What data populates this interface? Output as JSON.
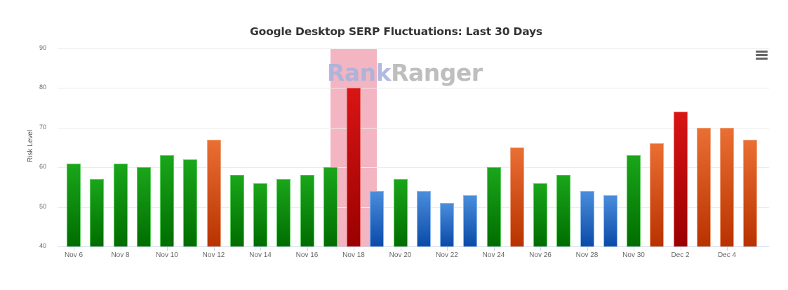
{
  "chart_data": {
    "type": "bar",
    "title": "Google Desktop SERP Fluctuations: Last 30 Days",
    "xlabel": "",
    "ylabel": "Risk Level",
    "ylim": [
      40,
      90
    ],
    "yticks": [
      40,
      50,
      60,
      70,
      80,
      90
    ],
    "grid": true,
    "legend": null,
    "categories": [
      "Nov 6",
      "Nov 7",
      "Nov 8",
      "Nov 9",
      "Nov 10",
      "Nov 11",
      "Nov 12",
      "Nov 13",
      "Nov 14",
      "Nov 15",
      "Nov 16",
      "Nov 17",
      "Nov 18",
      "Nov 19",
      "Nov 20",
      "Nov 21",
      "Nov 22",
      "Nov 23",
      "Nov 24",
      "Nov 25",
      "Nov 26",
      "Nov 27",
      "Nov 28",
      "Nov 29",
      "Nov 30",
      "Dec 1",
      "Dec 2",
      "Dec 3",
      "Dec 4",
      "Dec 5"
    ],
    "xtick_labels": [
      "Nov 6",
      "Nov 8",
      "Nov 10",
      "Nov 12",
      "Nov 14",
      "Nov 16",
      "Nov 18",
      "Nov 20",
      "Nov 22",
      "Nov 24",
      "Nov 26",
      "Nov 28",
      "Nov 30",
      "Dec 2",
      "Dec 4"
    ],
    "values": [
      61,
      57,
      61,
      60,
      63,
      62,
      67,
      58,
      56,
      57,
      58,
      60,
      80,
      54,
      57,
      54,
      51,
      53,
      60,
      65,
      56,
      58,
      54,
      53,
      63,
      66,
      74,
      70,
      70,
      67
    ],
    "bar_colors": [
      "green",
      "green",
      "green",
      "green",
      "green",
      "green",
      "orange",
      "green",
      "green",
      "green",
      "green",
      "green",
      "red",
      "blue",
      "green",
      "blue",
      "blue",
      "blue",
      "green",
      "orange",
      "green",
      "green",
      "blue",
      "blue",
      "green",
      "orange",
      "red",
      "orange",
      "orange",
      "orange"
    ],
    "highlight": {
      "category": "Nov 18",
      "color": "#f2b5c1"
    },
    "color_scale": {
      "green": "#1aa61a",
      "blue": "#3a7fd5",
      "orange": "#e0612a",
      "red": "#c80e0e"
    }
  },
  "watermark": {
    "part1": "Rank",
    "part2": "Ranger"
  },
  "menu": {
    "icon": "hamburger-menu-icon"
  }
}
